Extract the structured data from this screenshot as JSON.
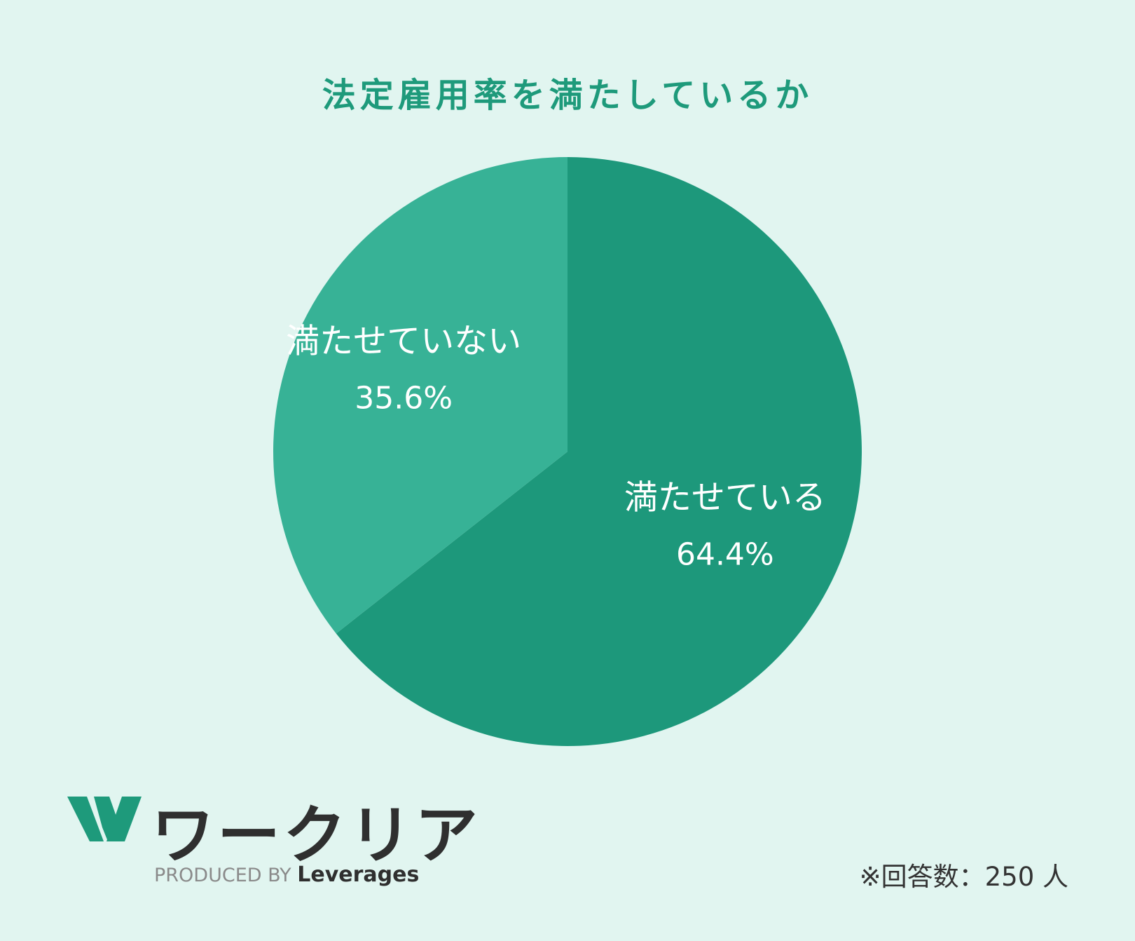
{
  "colors": {
    "background": "#e1f5f0",
    "title": "#1e9a7b",
    "slice_main": "#1d987b",
    "slice_secondary": "#37b296",
    "slice_label": "#ffffff",
    "logo_green": "#1e9a7b",
    "logo_dark": "#2f2f2f"
  },
  "chart_data": {
    "type": "pie",
    "title": "法定雇用率を満たしているか",
    "slices": [
      {
        "label": "満たせている",
        "value": 64.4,
        "display": "64.4%",
        "color": "#1d987b"
      },
      {
        "label": "満たせていない",
        "value": 35.6,
        "display": "35.6%",
        "color": "#37b296"
      }
    ],
    "start": "top",
    "direction": "clockwise"
  },
  "logo": {
    "icon": "w-logo-icon",
    "name": "ワークリア",
    "produced_by": "PRODUCED BY",
    "brand": "Leverages"
  },
  "note": "※回答数：250 人"
}
